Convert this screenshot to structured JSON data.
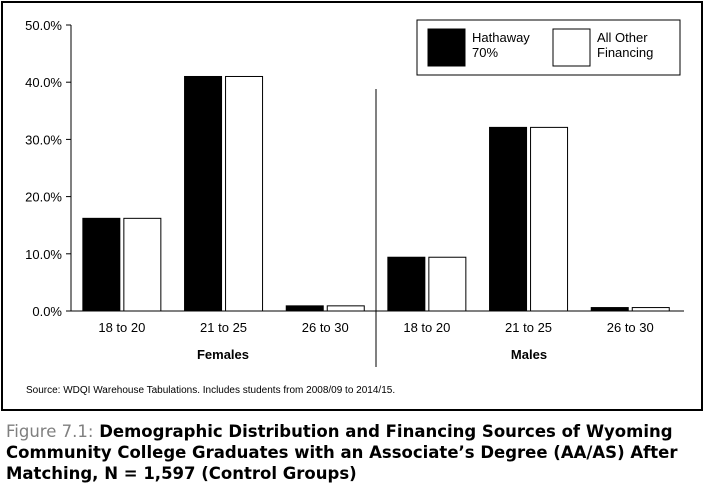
{
  "chart_data": {
    "type": "bar",
    "groups": [
      "Females",
      "Males"
    ],
    "categories": [
      "18 to 20",
      "21 to 25",
      "26 to 30"
    ],
    "series": [
      {
        "name": "Hathaway 70%",
        "values": {
          "Females": [
            16.2,
            41.0,
            0.9
          ],
          "Males": [
            9.4,
            32.1,
            0.6
          ]
        }
      },
      {
        "name": "All Other Financing",
        "values": {
          "Females": [
            16.2,
            41.0,
            0.9
          ],
          "Males": [
            9.4,
            32.1,
            0.6
          ]
        }
      }
    ],
    "yticks": [
      "0.0%",
      "10.0%",
      "20.0%",
      "30.0%",
      "40.0%",
      "50.0%"
    ],
    "ylim": [
      0,
      50
    ],
    "legend_position": "top-right",
    "colors": {
      "hathaway": "#000000",
      "other": "#ffffff",
      "caption_label": "#7f7f7f"
    }
  },
  "legend": {
    "hathaway_line1": "Hathaway",
    "hathaway_line2": "70%",
    "other_line1": "All Other",
    "other_line2": "Financing"
  },
  "source": "Source: WDQI Warehouse Tabulations. Includes students from 2008/09 to 2014/15.",
  "caption": {
    "label": "Figure 7.1:",
    "text": "Demographic Distribution and Financing Sources of Wyoming Community College Graduates with an Associate’s Degree (AA/AS) After Matching, N = 1,597 (Control Groups)"
  }
}
